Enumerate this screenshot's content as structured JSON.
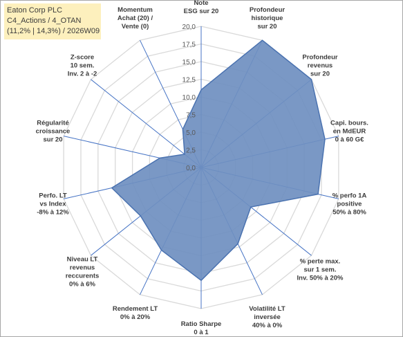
{
  "header": {
    "lines": [
      "Eaton Corp PLC",
      "C4_Actions / 4_OTAN",
      "(11,2% | 14,3%) / 2026W09"
    ]
  },
  "chart_data": {
    "type": "radar",
    "rmax": 20,
    "ticks": [
      "0,0",
      "2,5",
      "5,0",
      "7,5",
      "10,0",
      "12,5",
      "15,0",
      "17,5",
      "20,0"
    ],
    "categories": [
      [
        "Note",
        "ESG sur 20"
      ],
      [
        "Profondeur",
        "historique",
        "sur 20"
      ],
      [
        "Profondeur",
        "revenus",
        "sur 20"
      ],
      [
        "Capi. bours.",
        "en MdEUR",
        "0 à 60 G€"
      ],
      [
        "% perfo 1A",
        "positive",
        "50% à 80%"
      ],
      [
        "% perte max.",
        "sur 1 sem.",
        "Inv. 50% à 20%"
      ],
      [
        "Volatilité LT",
        "inversée",
        "40% à 0%"
      ],
      [
        "Ratio Sharpe",
        "0 à 1"
      ],
      [
        "Rendement LT",
        "0% à 20%"
      ],
      [
        "Niveau LT",
        "revenus",
        "reccurents",
        "0% à 6%"
      ],
      [
        "Perfo. LT",
        "vs Index",
        "-8% à 12%"
      ],
      [
        "Régularité",
        "croissance",
        "sur 20"
      ],
      [
        "Z-score",
        "10 sem.",
        "Inv. 2 à -2"
      ],
      [
        "Momentum",
        "Achat (20) /",
        "Vente (0)"
      ]
    ],
    "values": [
      11,
      20,
      20,
      18,
      17,
      9,
      12,
      16,
      13,
      11,
      13,
      6,
      3,
      6
    ],
    "colors": {
      "fill": "#6f8fc0",
      "stroke": "#4a72b0",
      "grid": "#d9d9d9",
      "spoke": "#4472c4"
    },
    "grid_rings": 8
  }
}
